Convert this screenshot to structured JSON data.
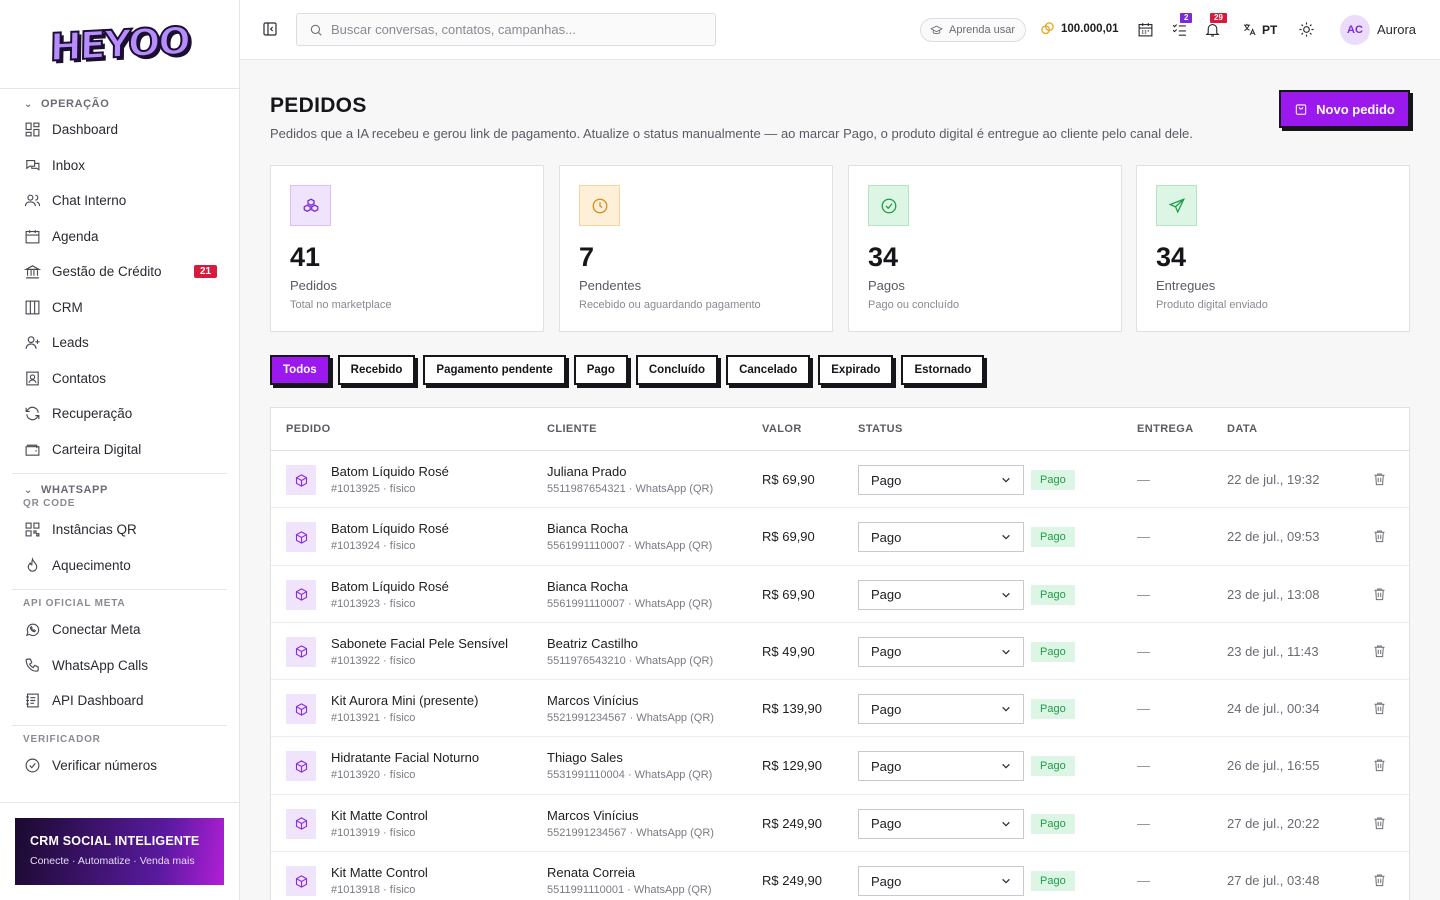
{
  "brand": {
    "logo_text": "HEYOO"
  },
  "sidebar": {
    "sections": [
      {
        "title": "OPERAÇÃO",
        "items": [
          {
            "label": "Dashboard",
            "icon": "dashboard-icon"
          },
          {
            "label": "Inbox",
            "icon": "chat-icon"
          },
          {
            "label": "Chat Interno",
            "icon": "users-icon"
          },
          {
            "label": "Agenda",
            "icon": "calendar-icon"
          },
          {
            "label": "Gestão de Crédito",
            "icon": "bank-icon",
            "badge": "21"
          },
          {
            "label": "CRM",
            "icon": "columns-icon"
          },
          {
            "label": "Leads",
            "icon": "user-plus-icon"
          },
          {
            "label": "Contatos",
            "icon": "contact-card-icon"
          },
          {
            "label": "Recuperação",
            "icon": "refresh-icon"
          },
          {
            "label": "Carteira Digital",
            "icon": "wallet-icon"
          }
        ]
      },
      {
        "title": "WHATSAPP",
        "sub": "QR CODE",
        "items": [
          {
            "label": "Instâncias QR",
            "icon": "qr-icon"
          },
          {
            "label": "Aquecimento",
            "icon": "flame-icon"
          }
        ]
      },
      {
        "sub": "API OFICIAL META",
        "items": [
          {
            "label": "Conectar Meta",
            "icon": "whatsapp-icon"
          },
          {
            "label": "WhatsApp Calls",
            "icon": "phone-icon"
          },
          {
            "label": "API Dashboard",
            "icon": "api-icon"
          }
        ]
      },
      {
        "sub": "VERIFICADOR",
        "items": [
          {
            "label": "Verificar números",
            "icon": "check-circle-icon"
          }
        ]
      }
    ],
    "promo": {
      "title": "CRM SOCIAL INTELIGENTE",
      "subtitle": "Conecte · Automatize · Venda mais"
    }
  },
  "topbar": {
    "search_placeholder": "Buscar conversas, contatos, campanhas...",
    "learn_label": "Aprenda usar",
    "credits": "100.000,01",
    "tasks_badge": "2",
    "notifications_badge": "29",
    "language": "PT",
    "avatar_initials": "AC",
    "username": "Aurora"
  },
  "page": {
    "title": "PEDIDOS",
    "subtitle": "Pedidos que a IA recebeu e gerou link de pagamento. Atualize o status manualmente — ao marcar Pago, o produto digital é entregue ao cliente pelo canal dele.",
    "new_button": "Novo pedido"
  },
  "stats": [
    {
      "value": "41",
      "label": "Pedidos",
      "desc": "Total no marketplace",
      "icon": "boxes-icon",
      "color": "#7a2ad8",
      "bg": "#f0e4fc"
    },
    {
      "value": "7",
      "label": "Pendentes",
      "desc": "Recebido ou aguardando pagamento",
      "icon": "clock-icon",
      "color": "#d98a12",
      "bg": "#fdefd8"
    },
    {
      "value": "34",
      "label": "Pagos",
      "desc": "Pago ou concluído",
      "icon": "check-circle-icon",
      "color": "#1f9c4a",
      "bg": "#ddf5e4"
    },
    {
      "value": "34",
      "label": "Entregues",
      "desc": "Produto digital enviado",
      "icon": "send-icon",
      "color": "#1f9c4a",
      "bg": "#ddf5e4"
    }
  ],
  "filters": [
    "Todos",
    "Recebido",
    "Pagamento pendente",
    "Pago",
    "Concluído",
    "Cancelado",
    "Expirado",
    "Estornado"
  ],
  "table": {
    "headers": {
      "pedido": "PEDIDO",
      "cliente": "CLIENTE",
      "valor": "VALOR",
      "status": "STATUS",
      "entrega": "ENTREGA",
      "data": "DATA"
    },
    "rows": [
      {
        "product": "Batom Líquido Rosé",
        "meta": "#1013925 · físico",
        "client": "Juliana Prado",
        "client_meta": "5511987654321 · WhatsApp (QR)",
        "value": "R$ 69,90",
        "status": "Pago",
        "pill": "Pago",
        "delivery": "—",
        "date": "22 de jul., 19:32"
      },
      {
        "product": "Batom Líquido Rosé",
        "meta": "#1013924 · físico",
        "client": "Bianca Rocha",
        "client_meta": "5561991110007 · WhatsApp (QR)",
        "value": "R$ 69,90",
        "status": "Pago",
        "pill": "Pago",
        "delivery": "—",
        "date": "22 de jul., 09:53"
      },
      {
        "product": "Batom Líquido Rosé",
        "meta": "#1013923 · físico",
        "client": "Bianca Rocha",
        "client_meta": "5561991110007 · WhatsApp (QR)",
        "value": "R$ 69,90",
        "status": "Pago",
        "pill": "Pago",
        "delivery": "—",
        "date": "23 de jul., 13:08"
      },
      {
        "product": "Sabonete Facial Pele Sensível",
        "meta": "#1013922 · físico",
        "client": "Beatriz Castilho",
        "client_meta": "5511976543210 · WhatsApp (QR)",
        "value": "R$ 49,90",
        "status": "Pago",
        "pill": "Pago",
        "delivery": "—",
        "date": "23 de jul., 11:43"
      },
      {
        "product": "Kit Aurora Mini (presente)",
        "meta": "#1013921 · físico",
        "client": "Marcos Vinícius",
        "client_meta": "5521991234567 · WhatsApp (QR)",
        "value": "R$ 139,90",
        "status": "Pago",
        "pill": "Pago",
        "delivery": "—",
        "date": "24 de jul., 00:34"
      },
      {
        "product": "Hidratante Facial Noturno",
        "meta": "#1013920 · físico",
        "client": "Thiago Sales",
        "client_meta": "5531991110004 · WhatsApp (QR)",
        "value": "R$ 129,90",
        "status": "Pago",
        "pill": "Pago",
        "delivery": "—",
        "date": "26 de jul., 16:55"
      },
      {
        "product": "Kit Matte Control",
        "meta": "#1013919 · físico",
        "client": "Marcos Vinícius",
        "client_meta": "5521991234567 · WhatsApp (QR)",
        "value": "R$ 249,90",
        "status": "Pago",
        "pill": "Pago",
        "delivery": "—",
        "date": "27 de jul., 20:22"
      },
      {
        "product": "Kit Matte Control",
        "meta": "#1013918 · físico",
        "client": "Renata Correia",
        "client_meta": "5511991110001 · WhatsApp (QR)",
        "value": "R$ 249,90",
        "status": "Pago",
        "pill": "Pago",
        "delivery": "—",
        "date": "27 de jul., 03:48"
      }
    ]
  },
  "colors": {
    "accent": "#9b18ef",
    "badge_red": "#d81b3c",
    "success": "#1f9c4a"
  }
}
